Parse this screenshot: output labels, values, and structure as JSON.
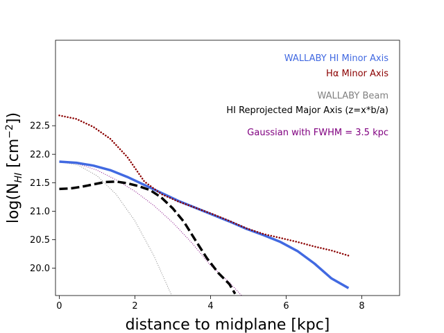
{
  "chart_data": {
    "type": "line",
    "xlabel": "distance to midplane [kpc]",
    "ylabel": {
      "base": "log(N",
      "sub": "HI",
      "mid": " [cm",
      "sup": "−2",
      "end": "])"
    },
    "xlim": [
      -0.1,
      9.0
    ],
    "ylim": [
      19.52,
      24.0
    ],
    "xticks": [
      0,
      2,
      4,
      6,
      8
    ],
    "yticks": [
      20.0,
      20.5,
      21.0,
      21.5,
      22.0,
      22.5
    ],
    "ytick_labels": [
      "20.0",
      "20.5",
      "21.0",
      "21.5",
      "22.0",
      "22.5"
    ],
    "grid": false,
    "legend_placement": "top-right",
    "series": [
      {
        "name": "WALLABY HI Minor Axis",
        "color": "#4169e1",
        "style": "solid-thick",
        "x": [
          0.0,
          0.45,
          0.9,
          1.35,
          1.8,
          2.25,
          2.7,
          3.15,
          3.6,
          4.05,
          4.5,
          4.95,
          5.4,
          5.85,
          6.3,
          6.75,
          7.2,
          7.65
        ],
        "y": [
          21.87,
          21.85,
          21.8,
          21.72,
          21.6,
          21.46,
          21.32,
          21.18,
          21.06,
          20.94,
          20.82,
          20.69,
          20.58,
          20.46,
          20.3,
          20.08,
          19.82,
          19.65
        ]
      },
      {
        "name": "Hα Minor Axis",
        "color": "#8b0000",
        "style": "dotted-thick",
        "x": [
          0.0,
          0.45,
          0.9,
          1.35,
          1.8,
          2.25,
          2.7,
          3.15,
          3.6,
          4.05,
          4.5,
          4.95,
          5.4,
          5.85,
          6.3,
          6.75,
          7.2,
          7.65
        ],
        "y": [
          22.68,
          22.62,
          22.48,
          22.27,
          21.95,
          21.52,
          21.3,
          21.17,
          21.06,
          20.95,
          20.83,
          20.7,
          20.6,
          20.53,
          20.46,
          20.38,
          20.31,
          20.22
        ]
      },
      {
        "name": "WALLABY Beam",
        "color": "#808080",
        "style": "dotted-thin",
        "x": [
          0.0,
          0.5,
          1.0,
          1.5,
          2.0,
          2.5,
          3.0,
          3.15
        ],
        "y": [
          21.87,
          21.81,
          21.62,
          21.3,
          20.83,
          20.22,
          19.48,
          19.5
        ]
      },
      {
        "name": "HI Reprojected Major Axis (z=x*b/a)",
        "color": "#000000",
        "style": "dashed-thick",
        "x": [
          0.0,
          0.3,
          0.6,
          0.9,
          1.2,
          1.5,
          1.8,
          2.1,
          2.4,
          2.7,
          3.0,
          3.3,
          3.6,
          3.9,
          4.2,
          4.5,
          4.65
        ],
        "y": [
          21.39,
          21.4,
          21.43,
          21.47,
          21.51,
          21.52,
          21.49,
          21.44,
          21.37,
          21.24,
          21.05,
          20.81,
          20.49,
          20.18,
          19.92,
          19.72,
          19.55
        ]
      },
      {
        "name": "Gaussian with FWHM = 3.5 kpc",
        "color": "#800080",
        "style": "dotted-thin",
        "x": [
          0.0,
          0.5,
          1.0,
          1.5,
          2.0,
          2.5,
          3.0,
          3.5,
          4.0,
          4.5,
          4.85
        ],
        "y": [
          21.87,
          21.83,
          21.72,
          21.55,
          21.35,
          21.1,
          20.8,
          20.45,
          20.05,
          19.75,
          19.5
        ]
      }
    ]
  }
}
